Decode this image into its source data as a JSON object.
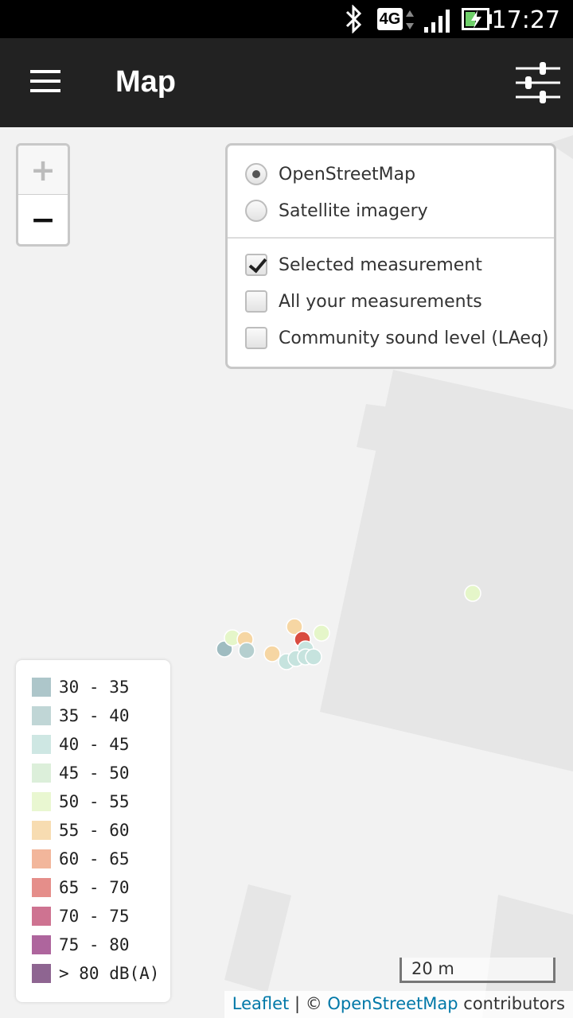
{
  "status_bar": {
    "network": "4G",
    "time": "17:27",
    "icons": [
      "bluetooth-icon",
      "network-4g-icon",
      "signal-icon",
      "battery-charging-icon"
    ]
  },
  "app_bar": {
    "title": "Map",
    "menu_icon": "hamburger-menu-icon",
    "filter_icon": "sliders-icon"
  },
  "zoom": {
    "in_label": "+",
    "out_label": "−"
  },
  "layers": {
    "base_layers": [
      {
        "label": "OpenStreetMap",
        "selected": true
      },
      {
        "label": "Satellite imagery",
        "selected": false
      }
    ],
    "overlays": [
      {
        "label": "Selected measurement",
        "checked": true
      },
      {
        "label": "All your measurements",
        "checked": false
      },
      {
        "label": "Community sound level (LAeq)",
        "checked": false
      }
    ]
  },
  "legend": {
    "items": [
      {
        "label": "30 - 35",
        "color": "#9fbcc1"
      },
      {
        "label": "35 - 40",
        "color": "#b5cfcf"
      },
      {
        "label": "40 - 45",
        "color": "#c6e3de"
      },
      {
        "label": "45 - 50",
        "color": "#d6ecd4"
      },
      {
        "label": "50 - 55",
        "color": "#e5f6c9"
      },
      {
        "label": "55 - 60",
        "color": "#f6d6a3"
      },
      {
        "label": "60 - 65",
        "color": "#f0a98a"
      },
      {
        "label": "65 - 70",
        "color": "#e07a76"
      },
      {
        "label": "70 - 75",
        "color": "#c65a7e"
      },
      {
        "label": "75 - 80",
        "color": "#a04a8c"
      },
      {
        "label": "> 80 dB(A)",
        "color": "#7a4a7e"
      }
    ]
  },
  "measurements": [
    {
      "color": "#e5f6c9"
    },
    {
      "color": "#9fbcc1"
    },
    {
      "color": "#e5f6c9"
    },
    {
      "color": "#f6d6a3"
    },
    {
      "color": "#b5cfcf"
    },
    {
      "color": "#f6d6a3"
    },
    {
      "color": "#f6d6a3"
    },
    {
      "color": "#d94b40"
    },
    {
      "color": "#e5f6c9"
    },
    {
      "color": "#c6e3de"
    },
    {
      "color": "#c6e3de"
    },
    {
      "color": "#c6e3de"
    },
    {
      "color": "#c6e3de"
    },
    {
      "color": "#c6e3de"
    }
  ],
  "scale": {
    "label": "20 m"
  },
  "attribution": {
    "leaflet": "Leaflet",
    "separator": " | © ",
    "osm": "OpenStreetMap",
    "suffix": " contributors"
  }
}
